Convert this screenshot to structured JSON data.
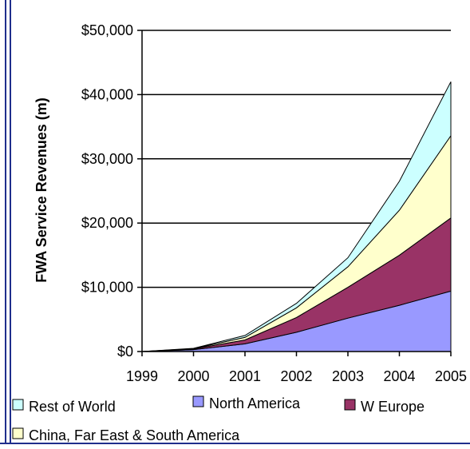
{
  "chart_data": {
    "type": "area",
    "stacked": true,
    "title": "",
    "xlabel": "",
    "ylabel": "FWA Service Revenues (m)",
    "x": [
      "1999",
      "2000",
      "2001",
      "2002",
      "2003",
      "2004",
      "2005"
    ],
    "ylim": [
      0,
      50000
    ],
    "yticks": [
      {
        "value": 0,
        "label": "$0"
      },
      {
        "value": 10000,
        "label": "$10,000"
      },
      {
        "value": 20000,
        "label": "$20,000"
      },
      {
        "value": 30000,
        "label": "$30,000"
      },
      {
        "value": 40000,
        "label": "$40,000"
      },
      {
        "value": 50000,
        "label": "$50,000"
      }
    ],
    "grid": true,
    "legend_position": "bottom",
    "series": [
      {
        "name": "North America",
        "color": "#9999ff",
        "values": [
          0,
          300,
          1200,
          3000,
          5200,
          7200,
          9400
        ]
      },
      {
        "name": "W Europe",
        "color": "#993366",
        "values": [
          0,
          100,
          600,
          2300,
          4800,
          7800,
          11400
        ]
      },
      {
        "name": "China, Far East & South America",
        "color": "#ffffcc",
        "values": [
          0,
          50,
          400,
          1500,
          3200,
          7000,
          12800
        ]
      },
      {
        "name": "Rest of World",
        "color": "#ccffff",
        "values": [
          0,
          50,
          300,
          700,
          1400,
          4500,
          8400
        ]
      }
    ],
    "legend": [
      {
        "label": "Rest of World",
        "color": "#ccffff"
      },
      {
        "label": "North America",
        "color": "#9999ff"
      },
      {
        "label": "W Europe",
        "color": "#993366"
      },
      {
        "label": "China, Far East & South America",
        "color": "#ffffcc"
      }
    ]
  }
}
